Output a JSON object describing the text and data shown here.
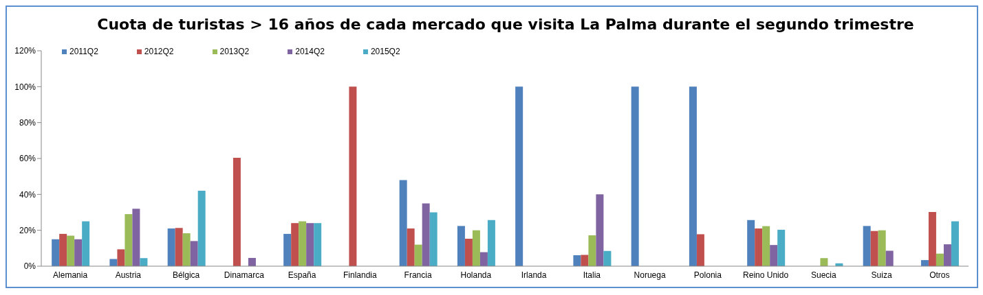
{
  "chart_data": {
    "type": "bar",
    "title": "Cuota de turistas > 16 años de cada mercado que visita La Palma durante el segundo trimestre",
    "categories": [
      "Alemania",
      "Austria",
      "Bélgica",
      "Dinamarca",
      "España",
      "Finlandia",
      "Francia",
      "Holanda",
      "Irlanda",
      "Italia",
      "Noruega",
      "Polonia",
      "Reino Unido",
      "Suecia",
      "Suiza",
      "Otros"
    ],
    "series": [
      {
        "name": "2011Q2",
        "color": "#4f81bd",
        "values": [
          15,
          4,
          21,
          0,
          18,
          0,
          48,
          22.4,
          100,
          6.1,
          100,
          100,
          25.7,
          0,
          22.4,
          3.4
        ]
      },
      {
        "name": "2012Q2",
        "color": "#c0504d",
        "values": [
          18,
          9.4,
          21.3,
          60.4,
          24,
          100,
          21,
          15.3,
          0,
          6.3,
          0,
          17.8,
          21,
          0,
          19.6,
          30.2
        ]
      },
      {
        "name": "2013Q2",
        "color": "#9bbb59",
        "values": [
          17,
          29,
          18.3,
          0,
          25,
          0,
          12,
          20,
          0,
          17.2,
          0,
          0,
          22.3,
          4.5,
          20,
          7
        ]
      },
      {
        "name": "2014Q2",
        "color": "#8064a2",
        "values": [
          15,
          32,
          14,
          4.6,
          24,
          0,
          35,
          7.8,
          0,
          40,
          0,
          0,
          11.8,
          0,
          8.6,
          12.2
        ]
      },
      {
        "name": "2015Q2",
        "color": "#4bacc6",
        "values": [
          25,
          4.5,
          42,
          0,
          24,
          0,
          30,
          25.7,
          0,
          8.5,
          0,
          0,
          20.3,
          1.6,
          0,
          25
        ]
      }
    ],
    "ylim": [
      0,
      120
    ],
    "yticks": [
      {
        "value": 0,
        "label": "0%"
      },
      {
        "value": 20,
        "label": "20%"
      },
      {
        "value": 40,
        "label": "40%"
      },
      {
        "value": 60,
        "label": "60%"
      },
      {
        "value": 80,
        "label": "80%"
      },
      {
        "value": 100,
        "label": "100%"
      },
      {
        "value": 120,
        "label": "120%"
      }
    ],
    "grid": false,
    "legend": "top left"
  }
}
